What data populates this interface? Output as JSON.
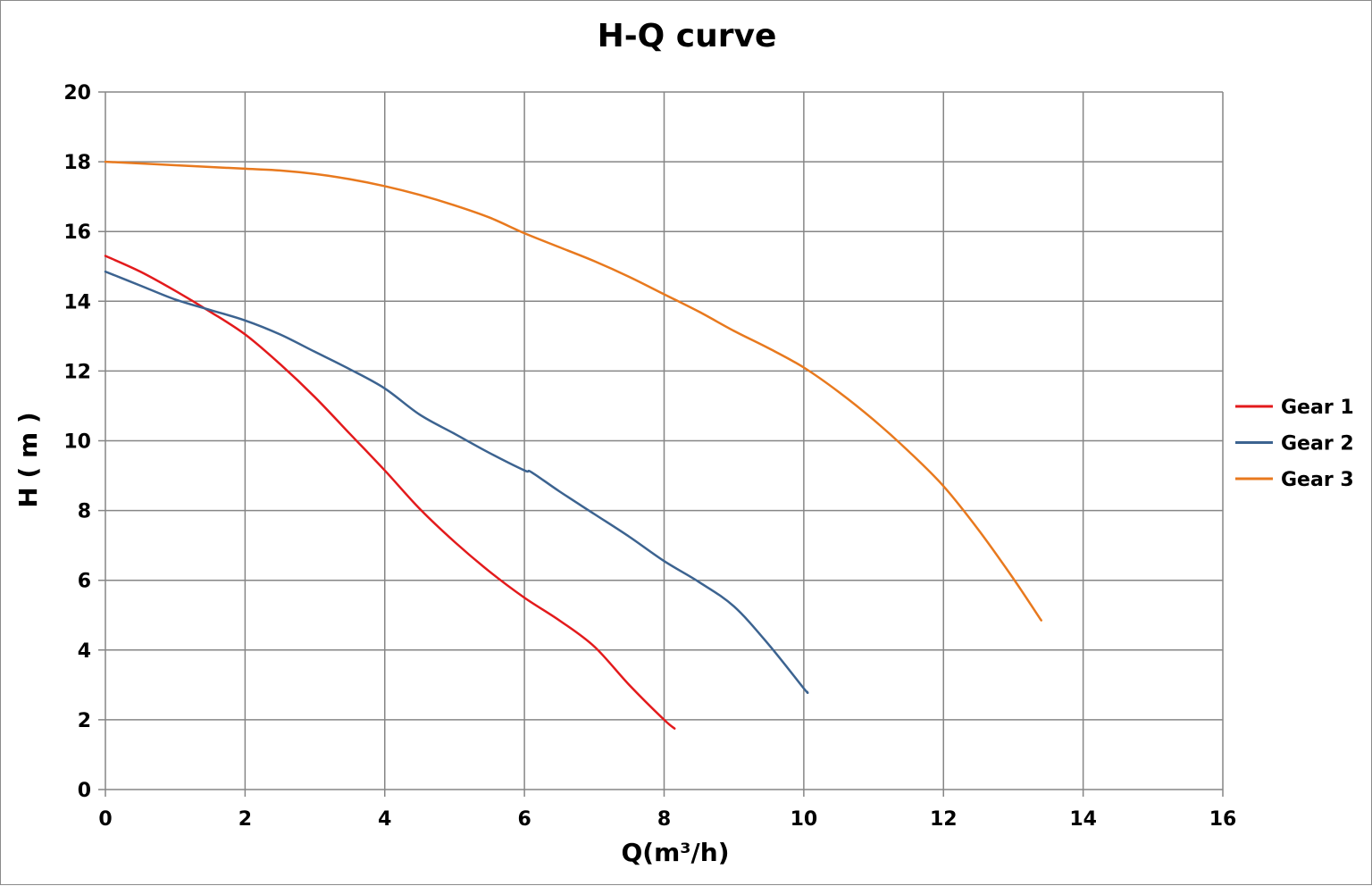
{
  "chart_data": {
    "type": "line",
    "title": "H-Q  curve",
    "xlabel": "Q(m³/h)",
    "ylabel": "H ( m )",
    "xlim": [
      0,
      16
    ],
    "ylim": [
      0,
      20
    ],
    "x_ticks": [
      0,
      2,
      4,
      6,
      8,
      10,
      12,
      14,
      16
    ],
    "y_ticks": [
      0,
      2,
      4,
      6,
      8,
      10,
      12,
      14,
      16,
      18,
      20
    ],
    "grid": true,
    "legend_position": "right",
    "series": [
      {
        "name": "Gear 1",
        "color": "#e31a1c",
        "points": [
          [
            0,
            15.3
          ],
          [
            0.5,
            14.85
          ],
          [
            1,
            14.3
          ],
          [
            1.5,
            13.7
          ],
          [
            2,
            13.05
          ],
          [
            2.5,
            12.2
          ],
          [
            3,
            11.25
          ],
          [
            3.5,
            10.2
          ],
          [
            4,
            9.15
          ],
          [
            4.5,
            8.05
          ],
          [
            5,
            7.1
          ],
          [
            5.5,
            6.25
          ],
          [
            6,
            5.5
          ],
          [
            6.5,
            4.85
          ],
          [
            7,
            4.1
          ],
          [
            7.5,
            3.0
          ],
          [
            8,
            2.0
          ],
          [
            8.15,
            1.75
          ]
        ]
      },
      {
        "name": "Gear 2",
        "color": "#3c6390",
        "points": [
          [
            0,
            14.85
          ],
          [
            0.5,
            14.45
          ],
          [
            1,
            14.05
          ],
          [
            1.5,
            13.75
          ],
          [
            2,
            13.45
          ],
          [
            2.5,
            13.05
          ],
          [
            3,
            12.55
          ],
          [
            3.5,
            12.05
          ],
          [
            4,
            11.5
          ],
          [
            4.5,
            10.75
          ],
          [
            5,
            10.2
          ],
          [
            5.5,
            9.65
          ],
          [
            6,
            9.15
          ],
          [
            6.1,
            9.1
          ],
          [
            6.5,
            8.55
          ],
          [
            7,
            7.9
          ],
          [
            7.5,
            7.25
          ],
          [
            8,
            6.55
          ],
          [
            8.5,
            5.95
          ],
          [
            9,
            5.25
          ],
          [
            9.5,
            4.15
          ],
          [
            10,
            2.9
          ],
          [
            10.05,
            2.8
          ]
        ]
      },
      {
        "name": "Gear 3",
        "color": "#e8791e",
        "points": [
          [
            0,
            18.0
          ],
          [
            1,
            17.9
          ],
          [
            2,
            17.8
          ],
          [
            2.5,
            17.75
          ],
          [
            3,
            17.65
          ],
          [
            3.5,
            17.5
          ],
          [
            4,
            17.3
          ],
          [
            4.5,
            17.05
          ],
          [
            5,
            16.75
          ],
          [
            5.5,
            16.4
          ],
          [
            6,
            15.95
          ],
          [
            6.5,
            15.55
          ],
          [
            7,
            15.15
          ],
          [
            7.5,
            14.7
          ],
          [
            8,
            14.2
          ],
          [
            8.5,
            13.7
          ],
          [
            9,
            13.15
          ],
          [
            9.5,
            12.65
          ],
          [
            10,
            12.1
          ],
          [
            10.5,
            11.4
          ],
          [
            11,
            10.6
          ],
          [
            11.5,
            9.7
          ],
          [
            12,
            8.7
          ],
          [
            12.5,
            7.45
          ],
          [
            13,
            6.05
          ],
          [
            13.4,
            4.85
          ]
        ]
      }
    ]
  }
}
